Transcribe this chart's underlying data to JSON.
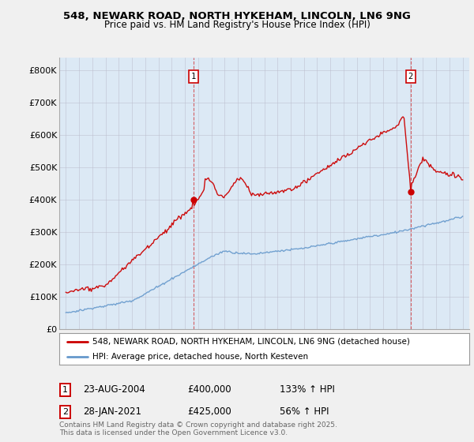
{
  "title_line1": "548, NEWARK ROAD, NORTH HYKEHAM, LINCOLN, LN6 9NG",
  "title_line2": "Price paid vs. HM Land Registry's House Price Index (HPI)",
  "background_color": "#f0f0f0",
  "plot_bg_color": "#dce9f5",
  "red_color": "#cc0000",
  "blue_color": "#6699cc",
  "marker1_x": 2004.65,
  "marker1_y": 400000,
  "marker2_x": 2021.07,
  "marker2_y": 425000,
  "marker1_label": "23-AUG-2004",
  "marker1_price": "£400,000",
  "marker1_hpi": "133% ↑ HPI",
  "marker2_label": "28-JAN-2021",
  "marker2_price": "£425,000",
  "marker2_hpi": "56% ↑ HPI",
  "legend_line1": "548, NEWARK ROAD, NORTH HYKEHAM, LINCOLN, LN6 9NG (detached house)",
  "legend_line2": "HPI: Average price, detached house, North Kesteven",
  "footer": "Contains HM Land Registry data © Crown copyright and database right 2025.\nThis data is licensed under the Open Government Licence v3.0.",
  "yticks": [
    0,
    100000,
    200000,
    300000,
    400000,
    500000,
    600000,
    700000,
    800000
  ],
  "ytick_labels": [
    "£0",
    "£100K",
    "£200K",
    "£300K",
    "£400K",
    "£500K",
    "£600K",
    "£700K",
    "£800K"
  ],
  "xlim": [
    1994.5,
    2025.5
  ],
  "ylim": [
    0,
    840000
  ]
}
